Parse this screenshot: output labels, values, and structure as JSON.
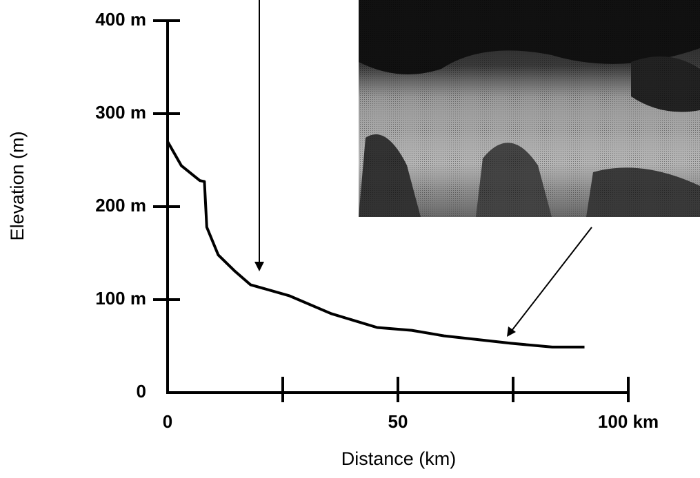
{
  "chart_data": {
    "type": "line",
    "xlabel": "Distance (km)",
    "ylabel": "Elevation (m)",
    "x": [
      0,
      3,
      7,
      8,
      8.5,
      11,
      14.5,
      18,
      26.5,
      35.5,
      45.5,
      53,
      60,
      74.5,
      83.5,
      90.5
    ],
    "values": [
      270,
      244,
      228,
      227,
      178,
      148,
      131,
      116,
      104,
      85,
      70,
      67,
      61,
      53,
      49,
      49
    ],
    "color": "#000000",
    "xlim": [
      0,
      100
    ],
    "xticks": [
      0,
      {
        "value": 25,
        "label": null
      },
      50,
      {
        "value": 75,
        "label": null
      },
      {
        "value": 100,
        "label": "100 km"
      }
    ],
    "ylim": [
      0,
      400
    ],
    "yticks": [
      0,
      {
        "value": 100,
        "label": "100 m"
      },
      {
        "value": 200,
        "label": "200 m"
      },
      {
        "value": 300,
        "label": "300 m"
      },
      {
        "value": 400,
        "label": "400 m"
      }
    ],
    "grid": false
  }
}
